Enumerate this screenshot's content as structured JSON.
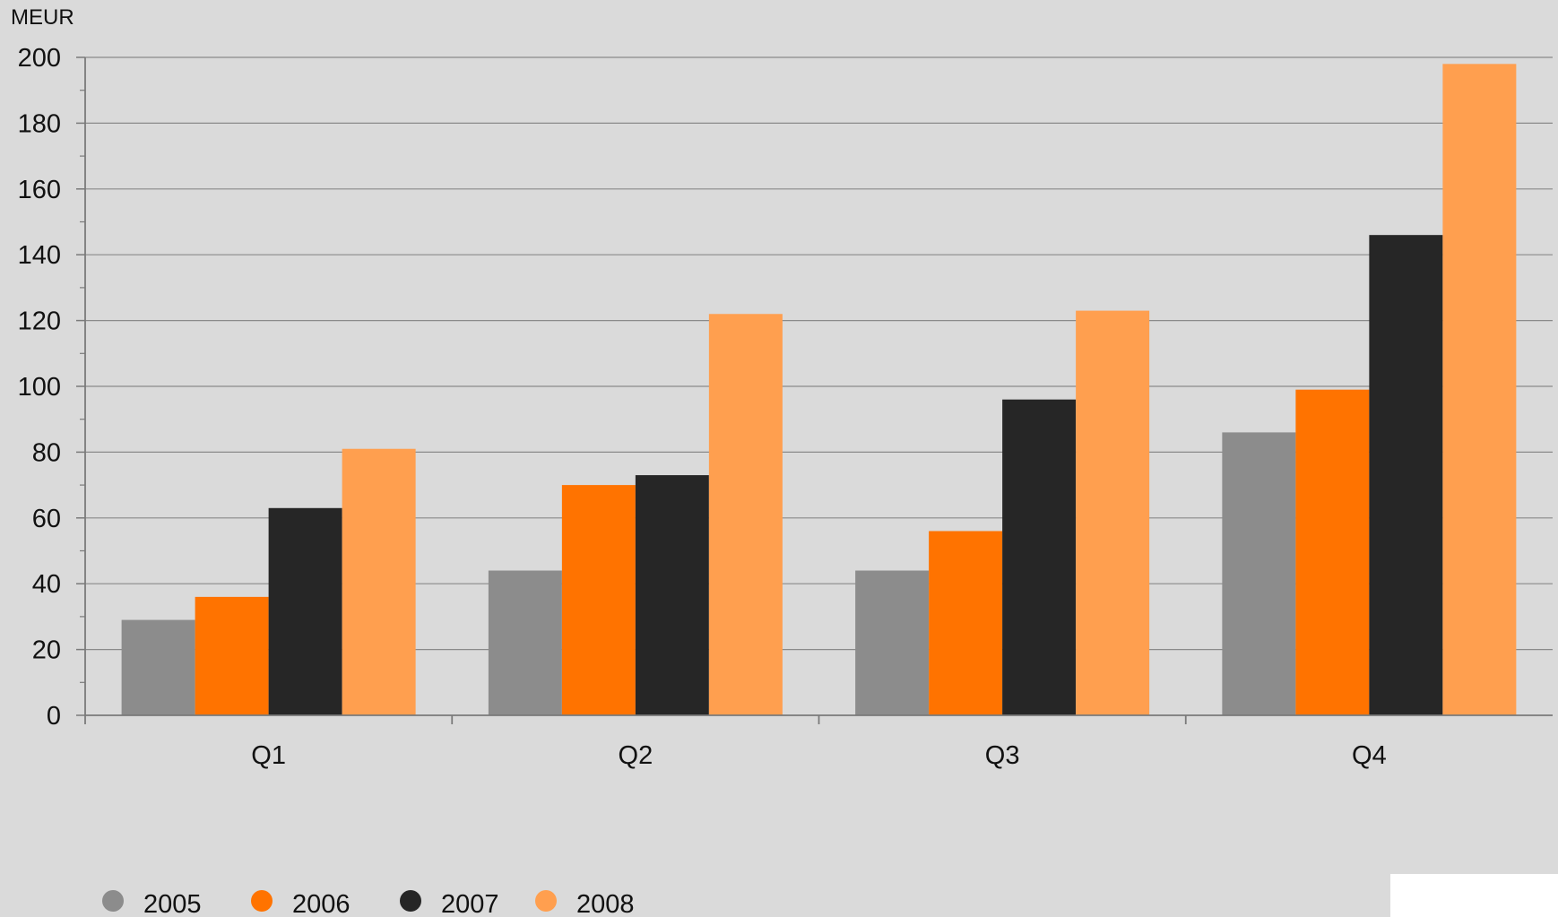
{
  "chart_data": {
    "type": "bar",
    "title": "",
    "xlabel": "",
    "ylabel": "MEUR",
    "ylim": [
      0,
      200
    ],
    "yticks": [
      0,
      20,
      40,
      60,
      80,
      100,
      120,
      140,
      160,
      180,
      200
    ],
    "categories": [
      "Q1",
      "Q2",
      "Q3",
      "Q4"
    ],
    "grid": true,
    "legend_position": "bottom-left",
    "series": [
      {
        "name": "2005",
        "color": "#8c8c8c",
        "values": [
          29,
          44,
          44,
          86
        ]
      },
      {
        "name": "2006",
        "color": "#ff7300",
        "values": [
          36,
          70,
          56,
          99
        ]
      },
      {
        "name": "2007",
        "color": "#262626",
        "values": [
          63,
          73,
          96,
          146
        ]
      },
      {
        "name": "2008",
        "color": "#ff9f4f",
        "values": [
          81,
          122,
          123,
          198
        ]
      }
    ]
  }
}
